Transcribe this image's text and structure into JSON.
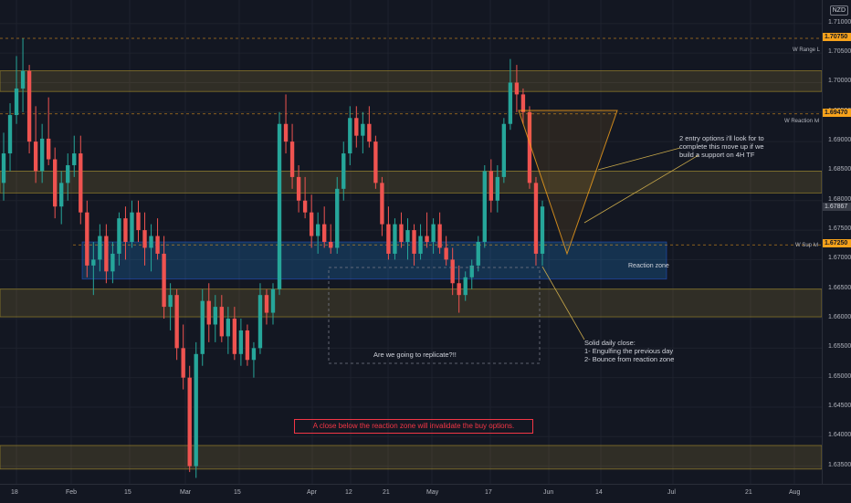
{
  "currency": "NZD",
  "price_axis": {
    "ticks": [
      "1.71000",
      "1.70500",
      "1.70000",
      "1.69500",
      "1.69000",
      "1.68500",
      "1.68000",
      "1.67500",
      "1.67000",
      "1.66500",
      "1.66000",
      "1.65500",
      "1.65000",
      "1.64500",
      "1.64000",
      "1.63500"
    ],
    "markers": [
      {
        "label": "1.70750",
        "style": "orange",
        "price": 1.7075
      },
      {
        "label": "1.69470",
        "style": "orange",
        "price": 1.6947
      },
      {
        "label": "1.67250",
        "style": "orange",
        "price": 1.6725
      },
      {
        "label": "1.67867",
        "style": "gray",
        "price": 1.6787
      }
    ]
  },
  "time_axis": [
    "18",
    "Feb",
    "15",
    "Mar",
    "15",
    "Apr",
    "12",
    "21",
    "May",
    "17",
    "Jun",
    "14",
    "Jul",
    "21",
    "Aug"
  ],
  "levels": {
    "range_high": {
      "name": "W Range L",
      "price": 1.7075
    },
    "reaction": {
      "name": "W Reaction lvl",
      "price": 1.6947
    },
    "support": {
      "name": "W Sup lvl",
      "price": 1.6725
    }
  },
  "zone_label": "Reaction zone",
  "annotations": {
    "entry": [
      "2 entry options i'll look for to",
      "complete this move up if we",
      "build a support on 4H TF"
    ],
    "replicate": "Are we going to replicate?!!",
    "solid": [
      "Solid daily close:",
      "1- Engulfing the previous day",
      "2- Bounce from reaction zone"
    ],
    "warning": "A close below the reaction zone will invalidate the buy options."
  },
  "colors": {
    "up": "#26a69a",
    "down": "#ef5350",
    "zone_yellow": "#f7c948",
    "zone_teal": "#2196f3",
    "marker": "#f7a21b"
  },
  "chart_data": {
    "type": "candlestick",
    "instrument_quote": "NZD",
    "x_start_label": "18",
    "ylim": [
      1.632,
      1.714
    ],
    "zones": [
      {
        "kind": "resistance",
        "from": 1.6985,
        "to": 1.702
      },
      {
        "kind": "resistance",
        "from": 1.6813,
        "to": 1.685
      },
      {
        "kind": "reaction",
        "from": 1.6667,
        "to": 1.673
      },
      {
        "kind": "support",
        "from": 1.6603,
        "to": 1.665
      },
      {
        "kind": "support",
        "from": 1.6345,
        "to": 1.6385
      }
    ],
    "candles": [
      [
        1.683,
        1.6915,
        1.68,
        1.688
      ],
      [
        1.688,
        1.6965,
        1.685,
        1.6945
      ],
      [
        1.6945,
        1.7045,
        1.693,
        1.699
      ],
      [
        1.699,
        1.7075,
        1.695,
        1.702
      ],
      [
        1.702,
        1.703,
        1.688,
        1.69
      ],
      [
        1.69,
        1.696,
        1.683,
        1.685
      ],
      [
        1.685,
        1.693,
        1.683,
        1.6905
      ],
      [
        1.6905,
        1.6975,
        1.686,
        1.687
      ],
      [
        1.687,
        1.689,
        1.677,
        1.679
      ],
      [
        1.679,
        1.685,
        1.676,
        1.683
      ],
      [
        1.683,
        1.688,
        1.68,
        1.686
      ],
      [
        1.686,
        1.691,
        1.684,
        1.688
      ],
      [
        1.688,
        1.691,
        1.676,
        1.678
      ],
      [
        1.678,
        1.68,
        1.667,
        1.669
      ],
      [
        1.669,
        1.673,
        1.664,
        1.67
      ],
      [
        1.67,
        1.676,
        1.668,
        1.674
      ],
      [
        1.674,
        1.676,
        1.666,
        1.668
      ],
      [
        1.668,
        1.673,
        1.666,
        1.671
      ],
      [
        1.671,
        1.678,
        1.669,
        1.677
      ],
      [
        1.677,
        1.679,
        1.67,
        1.673
      ],
      [
        1.673,
        1.68,
        1.672,
        1.678
      ],
      [
        1.678,
        1.68,
        1.673,
        1.675
      ],
      [
        1.675,
        1.678,
        1.669,
        1.672
      ],
      [
        1.672,
        1.676,
        1.668,
        1.674
      ],
      [
        1.674,
        1.677,
        1.67,
        1.671
      ],
      [
        1.671,
        1.674,
        1.66,
        1.662
      ],
      [
        1.662,
        1.666,
        1.658,
        1.664
      ],
      [
        1.664,
        1.665,
        1.653,
        1.655
      ],
      [
        1.655,
        1.659,
        1.648,
        1.65
      ],
      [
        1.65,
        1.652,
        1.634,
        1.635
      ],
      [
        1.635,
        1.656,
        1.633,
        1.654
      ],
      [
        1.654,
        1.665,
        1.652,
        1.663
      ],
      [
        1.663,
        1.666,
        1.656,
        1.659
      ],
      [
        1.659,
        1.664,
        1.656,
        1.662
      ],
      [
        1.662,
        1.664,
        1.656,
        1.657
      ],
      [
        1.657,
        1.662,
        1.654,
        1.66
      ],
      [
        1.66,
        1.662,
        1.653,
        1.654
      ],
      [
        1.654,
        1.66,
        1.652,
        1.658
      ],
      [
        1.658,
        1.659,
        1.652,
        1.653
      ],
      [
        1.653,
        1.656,
        1.65,
        1.655
      ],
      [
        1.655,
        1.666,
        1.654,
        1.664
      ],
      [
        1.664,
        1.665,
        1.659,
        1.661
      ],
      [
        1.661,
        1.666,
        1.659,
        1.665
      ],
      [
        1.665,
        1.695,
        1.664,
        1.693
      ],
      [
        1.693,
        1.698,
        1.688,
        1.69
      ],
      [
        1.69,
        1.693,
        1.682,
        1.684
      ],
      [
        1.684,
        1.686,
        1.678,
        1.68
      ],
      [
        1.68,
        1.684,
        1.677,
        1.678
      ],
      [
        1.678,
        1.681,
        1.672,
        1.674
      ],
      [
        1.674,
        1.678,
        1.671,
        1.676
      ],
      [
        1.676,
        1.679,
        1.672,
        1.673
      ],
      [
        1.673,
        1.676,
        1.671,
        1.672
      ],
      [
        1.672,
        1.684,
        1.671,
        1.682
      ],
      [
        1.682,
        1.69,
        1.68,
        1.688
      ],
      [
        1.688,
        1.696,
        1.686,
        1.694
      ],
      [
        1.694,
        1.696,
        1.689,
        1.691
      ],
      [
        1.691,
        1.695,
        1.688,
        1.693
      ],
      [
        1.693,
        1.696,
        1.689,
        1.69
      ],
      [
        1.69,
        1.691,
        1.682,
        1.683
      ],
      [
        1.683,
        1.684,
        1.674,
        1.676
      ],
      [
        1.676,
        1.679,
        1.67,
        1.671
      ],
      [
        1.671,
        1.677,
        1.67,
        1.676
      ],
      [
        1.676,
        1.678,
        1.672,
        1.673
      ],
      [
        1.673,
        1.677,
        1.67,
        1.675
      ],
      [
        1.675,
        1.676,
        1.669,
        1.671
      ],
      [
        1.671,
        1.676,
        1.67,
        1.674
      ],
      [
        1.674,
        1.678,
        1.672,
        1.673
      ],
      [
        1.673,
        1.677,
        1.671,
        1.676
      ],
      [
        1.676,
        1.678,
        1.671,
        1.672
      ],
      [
        1.672,
        1.674,
        1.669,
        1.67
      ],
      [
        1.67,
        1.672,
        1.664,
        1.666
      ],
      [
        1.666,
        1.669,
        1.661,
        1.664
      ],
      [
        1.664,
        1.668,
        1.663,
        1.667
      ],
      [
        1.667,
        1.67,
        1.665,
        1.669
      ],
      [
        1.669,
        1.674,
        1.668,
        1.673
      ],
      [
        1.673,
        1.686,
        1.672,
        1.685
      ],
      [
        1.685,
        1.687,
        1.678,
        1.68
      ],
      [
        1.68,
        1.686,
        1.678,
        1.684
      ],
      [
        1.684,
        1.694,
        1.683,
        1.693
      ],
      [
        1.693,
        1.704,
        1.692,
        1.7
      ],
      [
        1.7,
        1.703,
        1.695,
        1.698
      ],
      [
        1.698,
        1.699,
        1.693,
        1.695
      ],
      [
        1.695,
        1.696,
        1.682,
        1.683
      ],
      [
        1.683,
        1.684,
        1.669,
        1.671
      ],
      [
        1.671,
        1.68,
        1.669,
        1.679
      ]
    ],
    "x_ticks": [
      "18",
      "Feb",
      "15",
      "Mar",
      "15",
      "Apr",
      "12",
      "21",
      "May",
      "17",
      "Jun",
      "14",
      "Jul",
      "21",
      "Aug"
    ]
  }
}
